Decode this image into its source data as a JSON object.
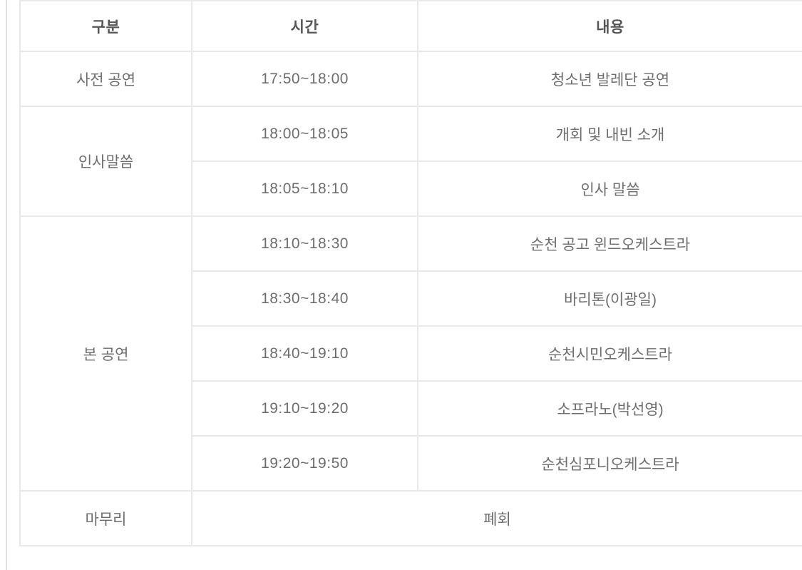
{
  "table": {
    "headers": [
      "구분",
      "시간",
      "내용"
    ],
    "rows": [
      {
        "category": "사전 공연",
        "category_rowspan": 1,
        "time": "17:50~18:00",
        "content": "청소년 발레단 공연"
      },
      {
        "category": "인사말씀",
        "category_rowspan": 2,
        "time": "18:00~18:05",
        "content": "개회 및 내빈 소개"
      },
      {
        "time": "18:05~18:10",
        "content": "인사 말씀"
      },
      {
        "category": "본 공연",
        "category_rowspan": 5,
        "time": "18:10~18:30",
        "content": "순천 공고 윈드오케스트라"
      },
      {
        "time": "18:30~18:40",
        "content": "바리톤(이광일)"
      },
      {
        "time": "18:40~19:10",
        "content": "순천시민오케스트라"
      },
      {
        "time": "19:10~19:20",
        "content": "소프라노(박선영)"
      },
      {
        "time": "19:20~19:50",
        "content": "순천심포니오케스트라"
      },
      {
        "category": "마무리",
        "category_rowspan": 1,
        "merged_content": "폐회",
        "merged_colspan": 2
      }
    ]
  },
  "colors": {
    "border": "#e9e9e9",
    "header_text": "#555555",
    "body_text": "#6e6e6e",
    "page_rule": "#e3e3e3",
    "background": "#ffffff"
  }
}
